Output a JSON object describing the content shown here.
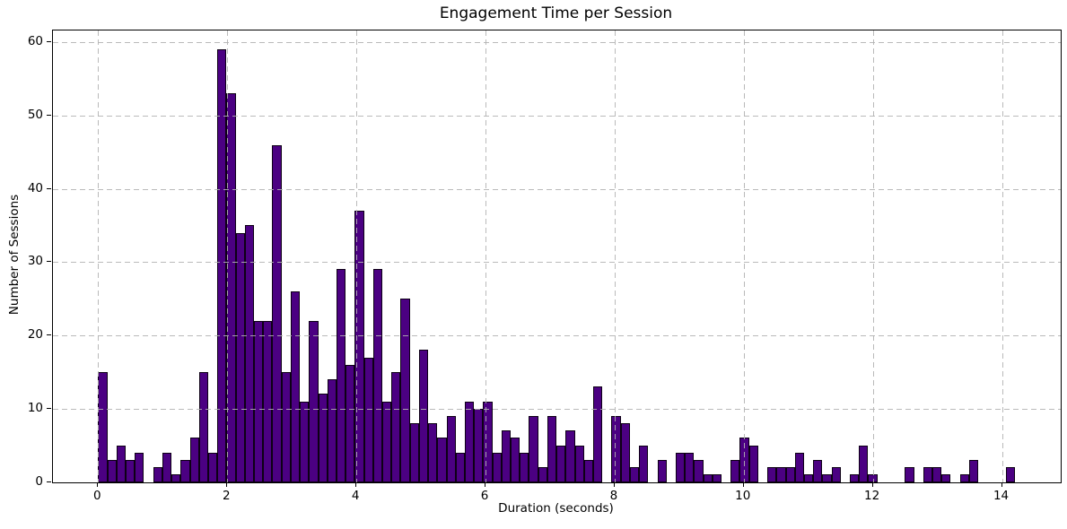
{
  "chart_data": {
    "type": "bar",
    "subtype": "histogram",
    "title": "Engagement Time per Session",
    "xlabel": "Duration (seconds)",
    "ylabel": "Number of Sessions",
    "bin_start": 0,
    "bin_width": 0.142,
    "counts": [
      15,
      3,
      5,
      3,
      4,
      0,
      2,
      4,
      1,
      3,
      6,
      15,
      4,
      59,
      53,
      34,
      35,
      22,
      22,
      46,
      15,
      26,
      11,
      22,
      12,
      14,
      29,
      16,
      37,
      17,
      29,
      11,
      15,
      25,
      8,
      18,
      8,
      6,
      9,
      4,
      11,
      10,
      11,
      4,
      7,
      6,
      4,
      9,
      2,
      9,
      5,
      7,
      5,
      3,
      13,
      0,
      9,
      8,
      2,
      5,
      0,
      3,
      0,
      4,
      4,
      3,
      1,
      1,
      0,
      3,
      6,
      5,
      0,
      2,
      2,
      2,
      4,
      1,
      3,
      1,
      2,
      0,
      1,
      5,
      1,
      0,
      0,
      0,
      2,
      0,
      2,
      2,
      1,
      0,
      1,
      3,
      0,
      0,
      0,
      2
    ],
    "x_ticks": [
      0,
      2,
      4,
      6,
      8,
      10,
      12,
      14
    ],
    "y_ticks": [
      0,
      10,
      20,
      30,
      40,
      50,
      60
    ],
    "xlim": [
      -0.7,
      14.91
    ],
    "ylim": [
      0,
      61.6
    ],
    "grid": true,
    "grid_style": "dashed",
    "grid_color": "#b2b2b2",
    "legend": null,
    "bar_color": "#4B0082",
    "bar_edge_color": "#0d0015",
    "background_color": "#ffffff",
    "text_color": "#000000"
  }
}
